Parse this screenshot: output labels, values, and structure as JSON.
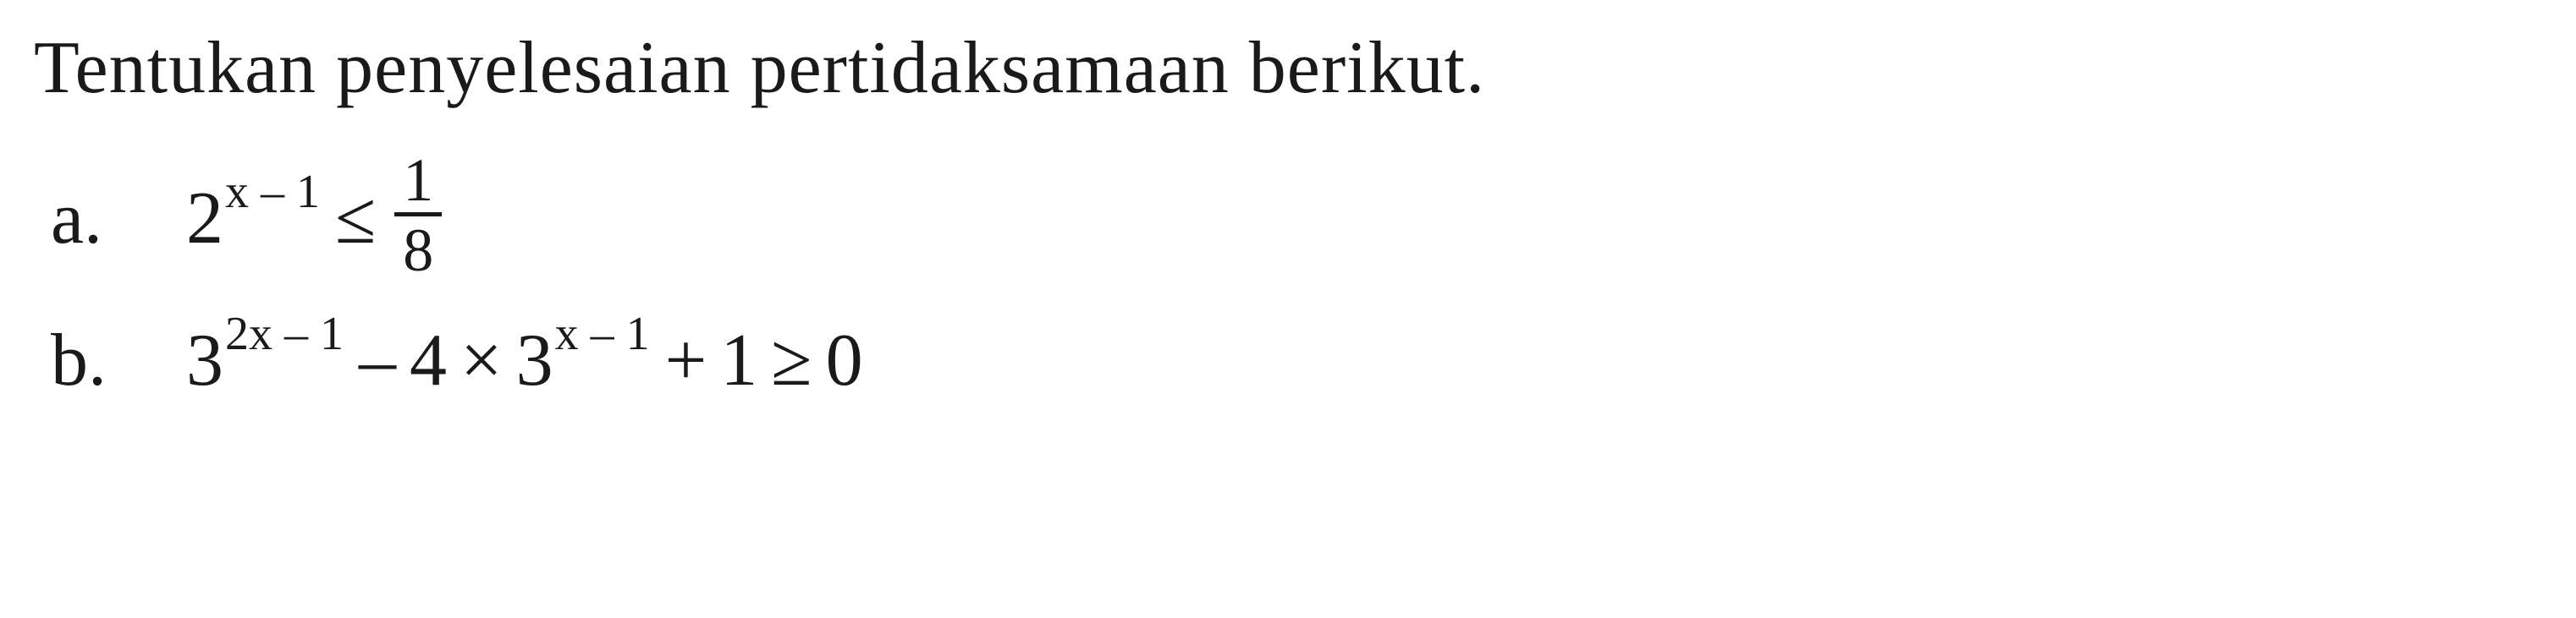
{
  "title": "Tentukan penyelesaian pertidaksamaan berikut.",
  "items": {
    "a": {
      "label": "a.",
      "base1": "2",
      "exp1": "x – 1",
      "rel": "≤",
      "fnum": "1",
      "fden": "8"
    },
    "b": {
      "label": "b.",
      "base1": "3",
      "exp1": "2x – 1",
      "minus": "–",
      "coef": "4",
      "times": "×",
      "base2": "3",
      "exp2": "x – 1",
      "plus": "+",
      "one": "1",
      "rel": "≥",
      "zero": "0"
    }
  },
  "style": {
    "background": "#ffffff",
    "text_color": "#1a1a1a",
    "title_fontsize": 88,
    "math_fontsize": 88,
    "sup_fontsize": 56,
    "frac_fontsize": 72,
    "font_family": "Georgia, Times New Roman, serif"
  }
}
